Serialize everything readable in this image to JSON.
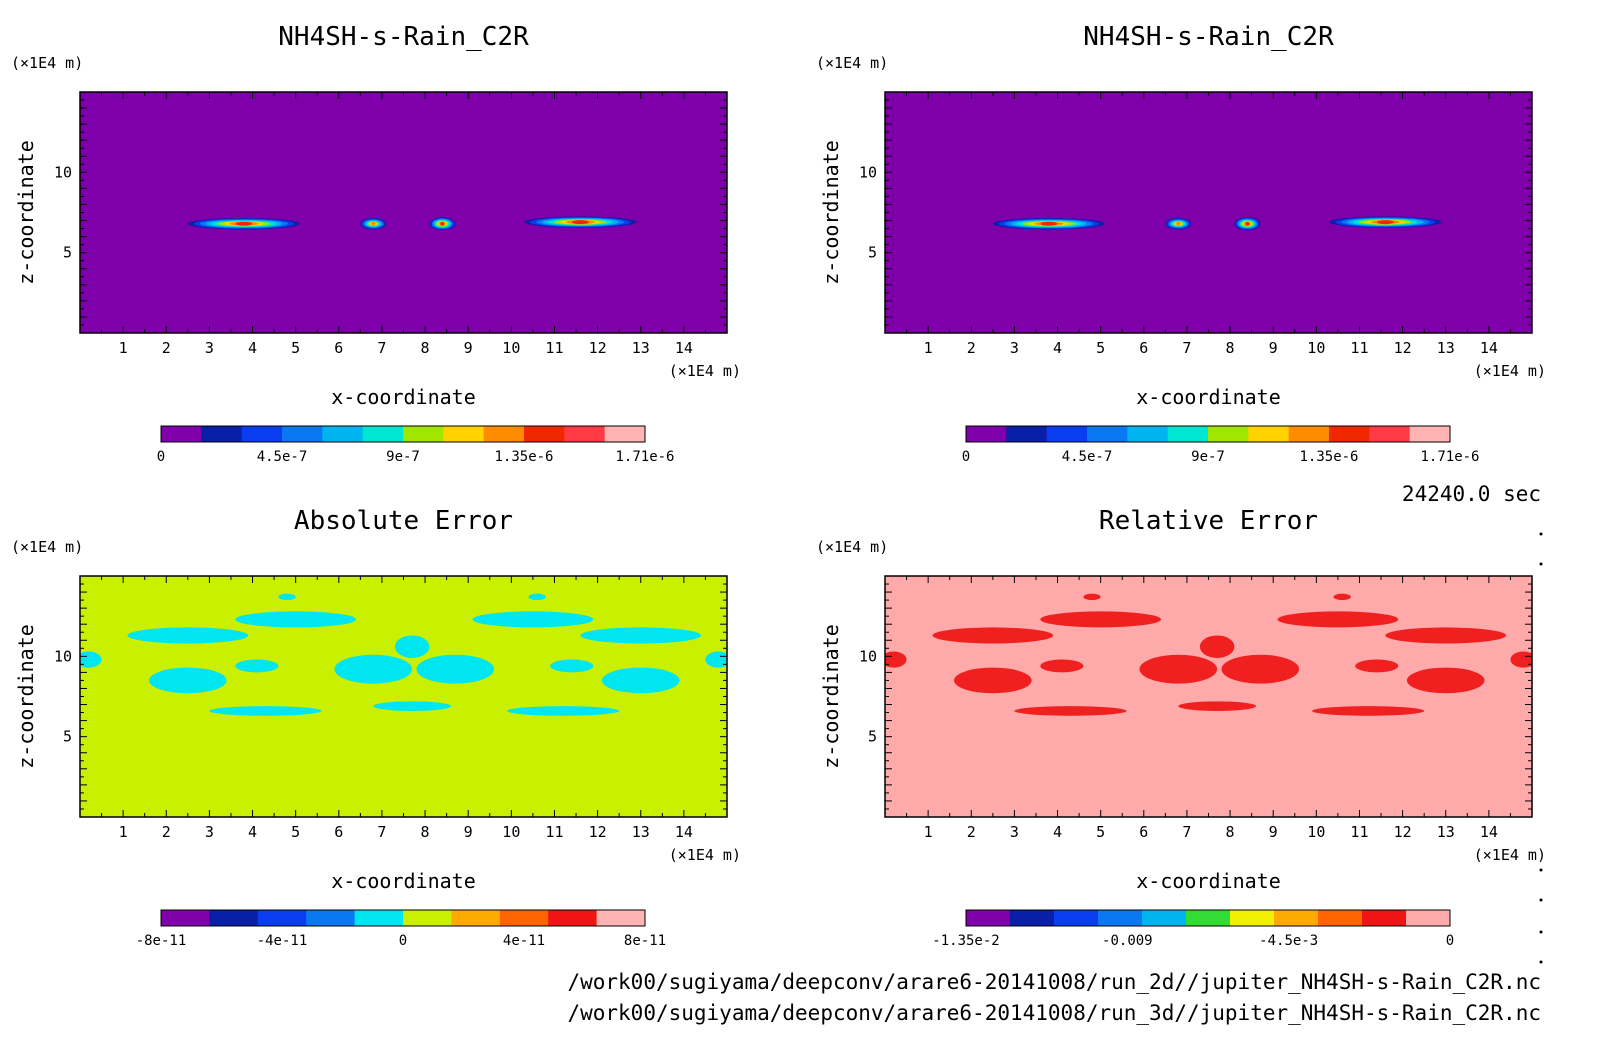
{
  "figure": {
    "time_label": "24240.0 sec",
    "file_paths": [
      "/work00/sugiyama/deepconv/arare6-20141008/run_2d//jupiter_NH4SH-s-Rain_C2R.nc",
      "/work00/sugiyama/deepconv/arare6-20141008/run_3d//jupiter_NH4SH-s-Rain_C2R.nc"
    ]
  },
  "chart_data": [
    {
      "type": "heatmap",
      "title": "NH4SH-s-Rain_C2R",
      "xlabel": "x-coordinate",
      "ylabel": "z-coordinate",
      "x_unit": "(×1E4 m)",
      "y_unit": "(×1E4 m)",
      "xlim": [
        0,
        15
      ],
      "ylim": [
        0,
        15
      ],
      "x_ticks": [
        "1",
        "2",
        "3",
        "4",
        "5",
        "6",
        "7",
        "8",
        "9",
        "10",
        "11",
        "12",
        "13",
        "14"
      ],
      "y_ticks": [
        "5",
        "10"
      ],
      "background_color": "#7f00aa",
      "colorbar": {
        "colors": [
          "#7f00aa",
          "#0a1fa8",
          "#0a3cf0",
          "#0a78f0",
          "#00b4f0",
          "#00e6d2",
          "#a0e600",
          "#ffd200",
          "#ff8c00",
          "#f02800",
          "#ff3c46",
          "#ffb4b4"
        ],
        "labels": [
          "0",
          "4.5e-7",
          "9e-7",
          "1.35e-6",
          "1.71e-6"
        ],
        "range": [
          0,
          1.71e-06
        ]
      },
      "blobs": [
        {
          "x": 3.8,
          "z": 6.8,
          "rx": 1.3,
          "rz": 0.35,
          "peak": 1.35e-06
        },
        {
          "x": 6.8,
          "z": 6.8,
          "rx": 0.3,
          "rz": 0.35,
          "peak": 1.2e-06
        },
        {
          "x": 8.4,
          "z": 6.8,
          "rx": 0.3,
          "rz": 0.4,
          "peak": 1.4e-06
        },
        {
          "x": 11.6,
          "z": 6.9,
          "rx": 1.3,
          "rz": 0.35,
          "peak": 1.35e-06
        }
      ]
    },
    {
      "type": "heatmap",
      "title": "NH4SH-s-Rain_C2R",
      "xlabel": "x-coordinate",
      "ylabel": "z-coordinate",
      "x_unit": "(×1E4 m)",
      "y_unit": "(×1E4 m)",
      "xlim": [
        0,
        15
      ],
      "ylim": [
        0,
        15
      ],
      "x_ticks": [
        "1",
        "2",
        "3",
        "4",
        "5",
        "6",
        "7",
        "8",
        "9",
        "10",
        "11",
        "12",
        "13",
        "14"
      ],
      "y_ticks": [
        "5",
        "10"
      ],
      "background_color": "#7f00aa",
      "colorbar": {
        "colors": [
          "#7f00aa",
          "#0a1fa8",
          "#0a3cf0",
          "#0a78f0",
          "#00b4f0",
          "#00e6d2",
          "#a0e600",
          "#ffd200",
          "#ff8c00",
          "#f02800",
          "#ff3c46",
          "#ffb4b4"
        ],
        "labels": [
          "0",
          "4.5e-7",
          "9e-7",
          "1.35e-6",
          "1.71e-6"
        ],
        "range": [
          0,
          1.71e-06
        ]
      },
      "blobs": [
        {
          "x": 3.8,
          "z": 6.8,
          "rx": 1.3,
          "rz": 0.35,
          "peak": 1.35e-06
        },
        {
          "x": 6.8,
          "z": 6.8,
          "rx": 0.3,
          "rz": 0.35,
          "peak": 1.2e-06
        },
        {
          "x": 8.4,
          "z": 6.8,
          "rx": 0.3,
          "rz": 0.4,
          "peak": 1.4e-06
        },
        {
          "x": 11.6,
          "z": 6.9,
          "rx": 1.3,
          "rz": 0.35,
          "peak": 1.35e-06
        }
      ]
    },
    {
      "type": "heatmap",
      "title": "Absolute Error",
      "xlabel": "x-coordinate",
      "ylabel": "z-coordinate",
      "x_unit": "(×1E4 m)",
      "y_unit": "(×1E4 m)",
      "xlim": [
        0,
        15
      ],
      "ylim": [
        0,
        15
      ],
      "x_ticks": [
        "1",
        "2",
        "3",
        "4",
        "5",
        "6",
        "7",
        "8",
        "9",
        "10",
        "11",
        "12",
        "13",
        "14"
      ],
      "y_ticks": [
        "5",
        "10"
      ],
      "background_color": "#c8f000",
      "patch_color": "#00e6f0",
      "colorbar": {
        "colors": [
          "#7f00aa",
          "#0a1fa8",
          "#0a3cf0",
          "#0a78f0",
          "#00e6f0",
          "#c8f000",
          "#ffaa00",
          "#ff6400",
          "#f01414",
          "#ffb4b4"
        ],
        "labels": [
          "-8e-11",
          "-4e-11",
          "0",
          "4e-11",
          "8e-11"
        ],
        "range": [
          -1e-10,
          1e-10
        ]
      },
      "patches": [
        {
          "x": 2.5,
          "z": 8.5,
          "rx": 0.9,
          "rz": 0.8
        },
        {
          "x": 4.1,
          "z": 9.4,
          "rx": 0.5,
          "rz": 0.4
        },
        {
          "x": 4.3,
          "z": 6.6,
          "rx": 1.3,
          "rz": 0.3
        },
        {
          "x": 6.8,
          "z": 9.2,
          "rx": 0.9,
          "rz": 0.9
        },
        {
          "x": 7.7,
          "z": 10.6,
          "rx": 0.4,
          "rz": 0.7
        },
        {
          "x": 8.7,
          "z": 9.2,
          "rx": 0.9,
          "rz": 0.9
        },
        {
          "x": 7.7,
          "z": 6.9,
          "rx": 0.9,
          "rz": 0.3
        },
        {
          "x": 11.2,
          "z": 6.6,
          "rx": 1.3,
          "rz": 0.3
        },
        {
          "x": 11.4,
          "z": 9.4,
          "rx": 0.5,
          "rz": 0.4
        },
        {
          "x": 13.0,
          "z": 8.5,
          "rx": 0.9,
          "rz": 0.8
        },
        {
          "x": 2.5,
          "z": 11.3,
          "rx": 1.4,
          "rz": 0.5
        },
        {
          "x": 5.0,
          "z": 12.3,
          "rx": 1.4,
          "rz": 0.5
        },
        {
          "x": 10.5,
          "z": 12.3,
          "rx": 1.4,
          "rz": 0.5
        },
        {
          "x": 13.0,
          "z": 11.3,
          "rx": 1.4,
          "rz": 0.5
        },
        {
          "x": 0.2,
          "z": 9.8,
          "rx": 0.3,
          "rz": 0.5
        },
        {
          "x": 14.8,
          "z": 9.8,
          "rx": 0.3,
          "rz": 0.5
        },
        {
          "x": 4.8,
          "z": 13.7,
          "rx": 0.2,
          "rz": 0.2
        },
        {
          "x": 10.6,
          "z": 13.7,
          "rx": 0.2,
          "rz": 0.2
        }
      ]
    },
    {
      "type": "heatmap",
      "title": "Relative Error",
      "xlabel": "x-coordinate",
      "ylabel": "z-coordinate",
      "x_unit": "(×1E4 m)",
      "y_unit": "(×1E4 m)",
      "xlim": [
        0,
        15
      ],
      "ylim": [
        0,
        15
      ],
      "x_ticks": [
        "1",
        "2",
        "3",
        "4",
        "5",
        "6",
        "7",
        "8",
        "9",
        "10",
        "11",
        "12",
        "13",
        "14"
      ],
      "y_ticks": [
        "5",
        "10"
      ],
      "background_color": "#ffaaaa",
      "patch_color": "#f02020",
      "colorbar": {
        "colors": [
          "#7f00aa",
          "#0a1fa8",
          "#0a3cf0",
          "#0a78f0",
          "#00b4f0",
          "#32dc32",
          "#f0f000",
          "#ffaa00",
          "#ff6400",
          "#f01414",
          "#ffaaaa"
        ],
        "labels": [
          "-1.35e-2",
          "-0.009",
          "-4.5e-3",
          "0"
        ],
        "range": [
          -0.015,
          0.0015
        ]
      },
      "patches": [
        {
          "x": 2.5,
          "z": 8.5,
          "rx": 0.9,
          "rz": 0.8
        },
        {
          "x": 4.1,
          "z": 9.4,
          "rx": 0.5,
          "rz": 0.4
        },
        {
          "x": 4.3,
          "z": 6.6,
          "rx": 1.3,
          "rz": 0.3
        },
        {
          "x": 6.8,
          "z": 9.2,
          "rx": 0.9,
          "rz": 0.9
        },
        {
          "x": 7.7,
          "z": 10.6,
          "rx": 0.4,
          "rz": 0.7
        },
        {
          "x": 8.7,
          "z": 9.2,
          "rx": 0.9,
          "rz": 0.9
        },
        {
          "x": 7.7,
          "z": 6.9,
          "rx": 0.9,
          "rz": 0.3
        },
        {
          "x": 11.2,
          "z": 6.6,
          "rx": 1.3,
          "rz": 0.3
        },
        {
          "x": 11.4,
          "z": 9.4,
          "rx": 0.5,
          "rz": 0.4
        },
        {
          "x": 13.0,
          "z": 8.5,
          "rx": 0.9,
          "rz": 0.8
        },
        {
          "x": 2.5,
          "z": 11.3,
          "rx": 1.4,
          "rz": 0.5
        },
        {
          "x": 5.0,
          "z": 12.3,
          "rx": 1.4,
          "rz": 0.5
        },
        {
          "x": 10.5,
          "z": 12.3,
          "rx": 1.4,
          "rz": 0.5
        },
        {
          "x": 13.0,
          "z": 11.3,
          "rx": 1.4,
          "rz": 0.5
        },
        {
          "x": 0.2,
          "z": 9.8,
          "rx": 0.3,
          "rz": 0.5
        },
        {
          "x": 14.8,
          "z": 9.8,
          "rx": 0.3,
          "rz": 0.5
        },
        {
          "x": 4.8,
          "z": 13.7,
          "rx": 0.2,
          "rz": 0.2
        },
        {
          "x": 10.6,
          "z": 13.7,
          "rx": 0.2,
          "rz": 0.2
        }
      ]
    }
  ]
}
